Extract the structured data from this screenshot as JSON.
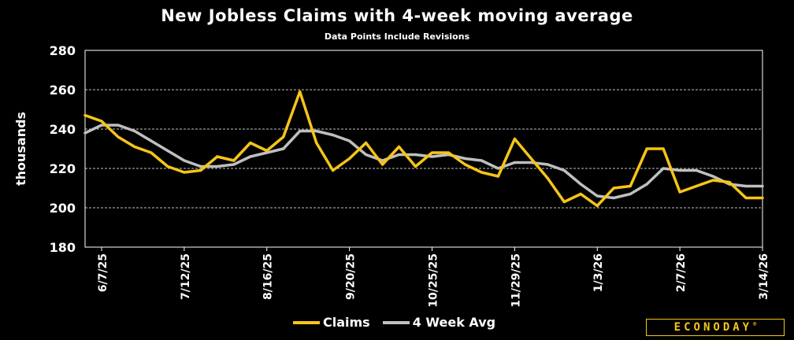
{
  "chart_data": {
    "type": "line",
    "title": "New Jobless Claims with 4-week moving average",
    "subtitle": "Data Points Include Revisions",
    "ylabel": "thousands",
    "xlabel": "",
    "ylim": [
      180,
      280
    ],
    "yticks": [
      180,
      200,
      220,
      240,
      260,
      280
    ],
    "grid": true,
    "legend_position": "bottom",
    "x": [
      "5/31/25",
      "6/7/25",
      "6/14/25",
      "6/21/25",
      "6/28/25",
      "7/5/25",
      "7/12/25",
      "7/19/25",
      "7/26/25",
      "8/2/25",
      "8/9/25",
      "8/16/25",
      "8/23/25",
      "8/30/25",
      "9/6/25",
      "9/13/25",
      "9/20/25",
      "9/27/25",
      "10/4/25",
      "10/11/25",
      "10/18/25",
      "10/25/25",
      "11/1/25",
      "11/8/25",
      "11/15/25",
      "11/22/25",
      "11/29/25",
      "12/6/25",
      "12/13/25",
      "12/20/25",
      "12/27/25",
      "1/3/26",
      "1/10/26",
      "1/17/26",
      "1/24/26",
      "1/31/26",
      "2/7/26",
      "2/14/26",
      "2/21/26",
      "2/28/26",
      "3/7/26",
      "3/14/26"
    ],
    "x_tick_labels": [
      "6/7/25",
      "7/12/25",
      "8/16/25",
      "9/20/25",
      "10/25/25",
      "11/29/25",
      "1/3/26",
      "2/7/26",
      "3/14/26"
    ],
    "series": [
      {
        "name": "Claims",
        "color": "#f5c518",
        "values": [
          247,
          244,
          236,
          231,
          228,
          221,
          218,
          219,
          226,
          224,
          233,
          229,
          236,
          259,
          233,
          219,
          225,
          233,
          222,
          231,
          221,
          228,
          228,
          222,
          218,
          216,
          235,
          225,
          215,
          203,
          207,
          201,
          210,
          211,
          230,
          230,
          208,
          211,
          214,
          213,
          205,
          205
        ]
      },
      {
        "name": "4 Week Avg",
        "color": "#bfbfbf",
        "values": [
          238,
          242,
          242,
          239,
          234,
          229,
          224,
          221,
          221,
          222,
          226,
          228,
          230,
          239,
          239,
          237,
          234,
          227,
          224,
          227,
          227,
          226,
          227,
          225,
          224,
          220,
          223,
          223,
          222,
          219,
          212,
          206,
          205,
          207,
          212,
          220,
          219,
          219,
          216,
          212,
          211,
          211
        ]
      }
    ]
  },
  "legend": {
    "claims_label": "Claims",
    "avg_label": "4 Week Avg"
  },
  "logo": {
    "text": "ECONODAY",
    "mark": "®"
  },
  "colors": {
    "background": "#000000",
    "claims": "#f5c518",
    "average": "#bfbfbf",
    "grid": "#ffffff",
    "text": "#ffffff",
    "brand": "#f5c518"
  }
}
